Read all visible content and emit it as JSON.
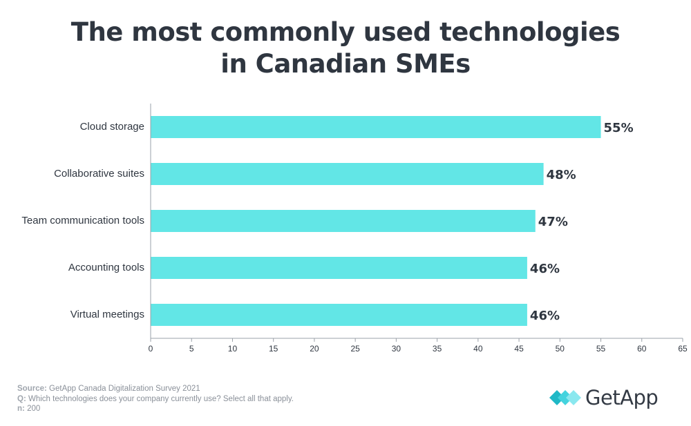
{
  "chart_data": {
    "type": "bar",
    "orientation": "horizontal",
    "title_lines": [
      "The most commonly used technologies",
      "in Canadian SMEs"
    ],
    "categories": [
      "Cloud storage",
      "Collaborative suites",
      "Team communication tools",
      "Accounting tools",
      "Virtual meetings"
    ],
    "values": [
      55,
      48,
      47,
      46,
      46
    ],
    "value_labels": [
      "55%",
      "48%",
      "47%",
      "46%",
      "46%"
    ],
    "xticks": [
      "0",
      "5",
      "10",
      "15",
      "20",
      "25",
      "30",
      "35",
      "40",
      "45",
      "50",
      "55",
      "60",
      "65"
    ],
    "xlim": [
      0,
      65
    ],
    "grid": false,
    "bar_color": "#62e6e6"
  },
  "footer": {
    "source_key": "Source:",
    "source_text": "GetApp Canada Digitalization Survey 2021",
    "q_key": "Q:",
    "q_text": "Which technologies does your company currently use? Select all that apply.",
    "n_key": "n:",
    "n_text": "200"
  },
  "logo": {
    "text": "GetApp",
    "colors": [
      "#1fb8c6",
      "#44d3de",
      "#8ae8ef"
    ]
  }
}
